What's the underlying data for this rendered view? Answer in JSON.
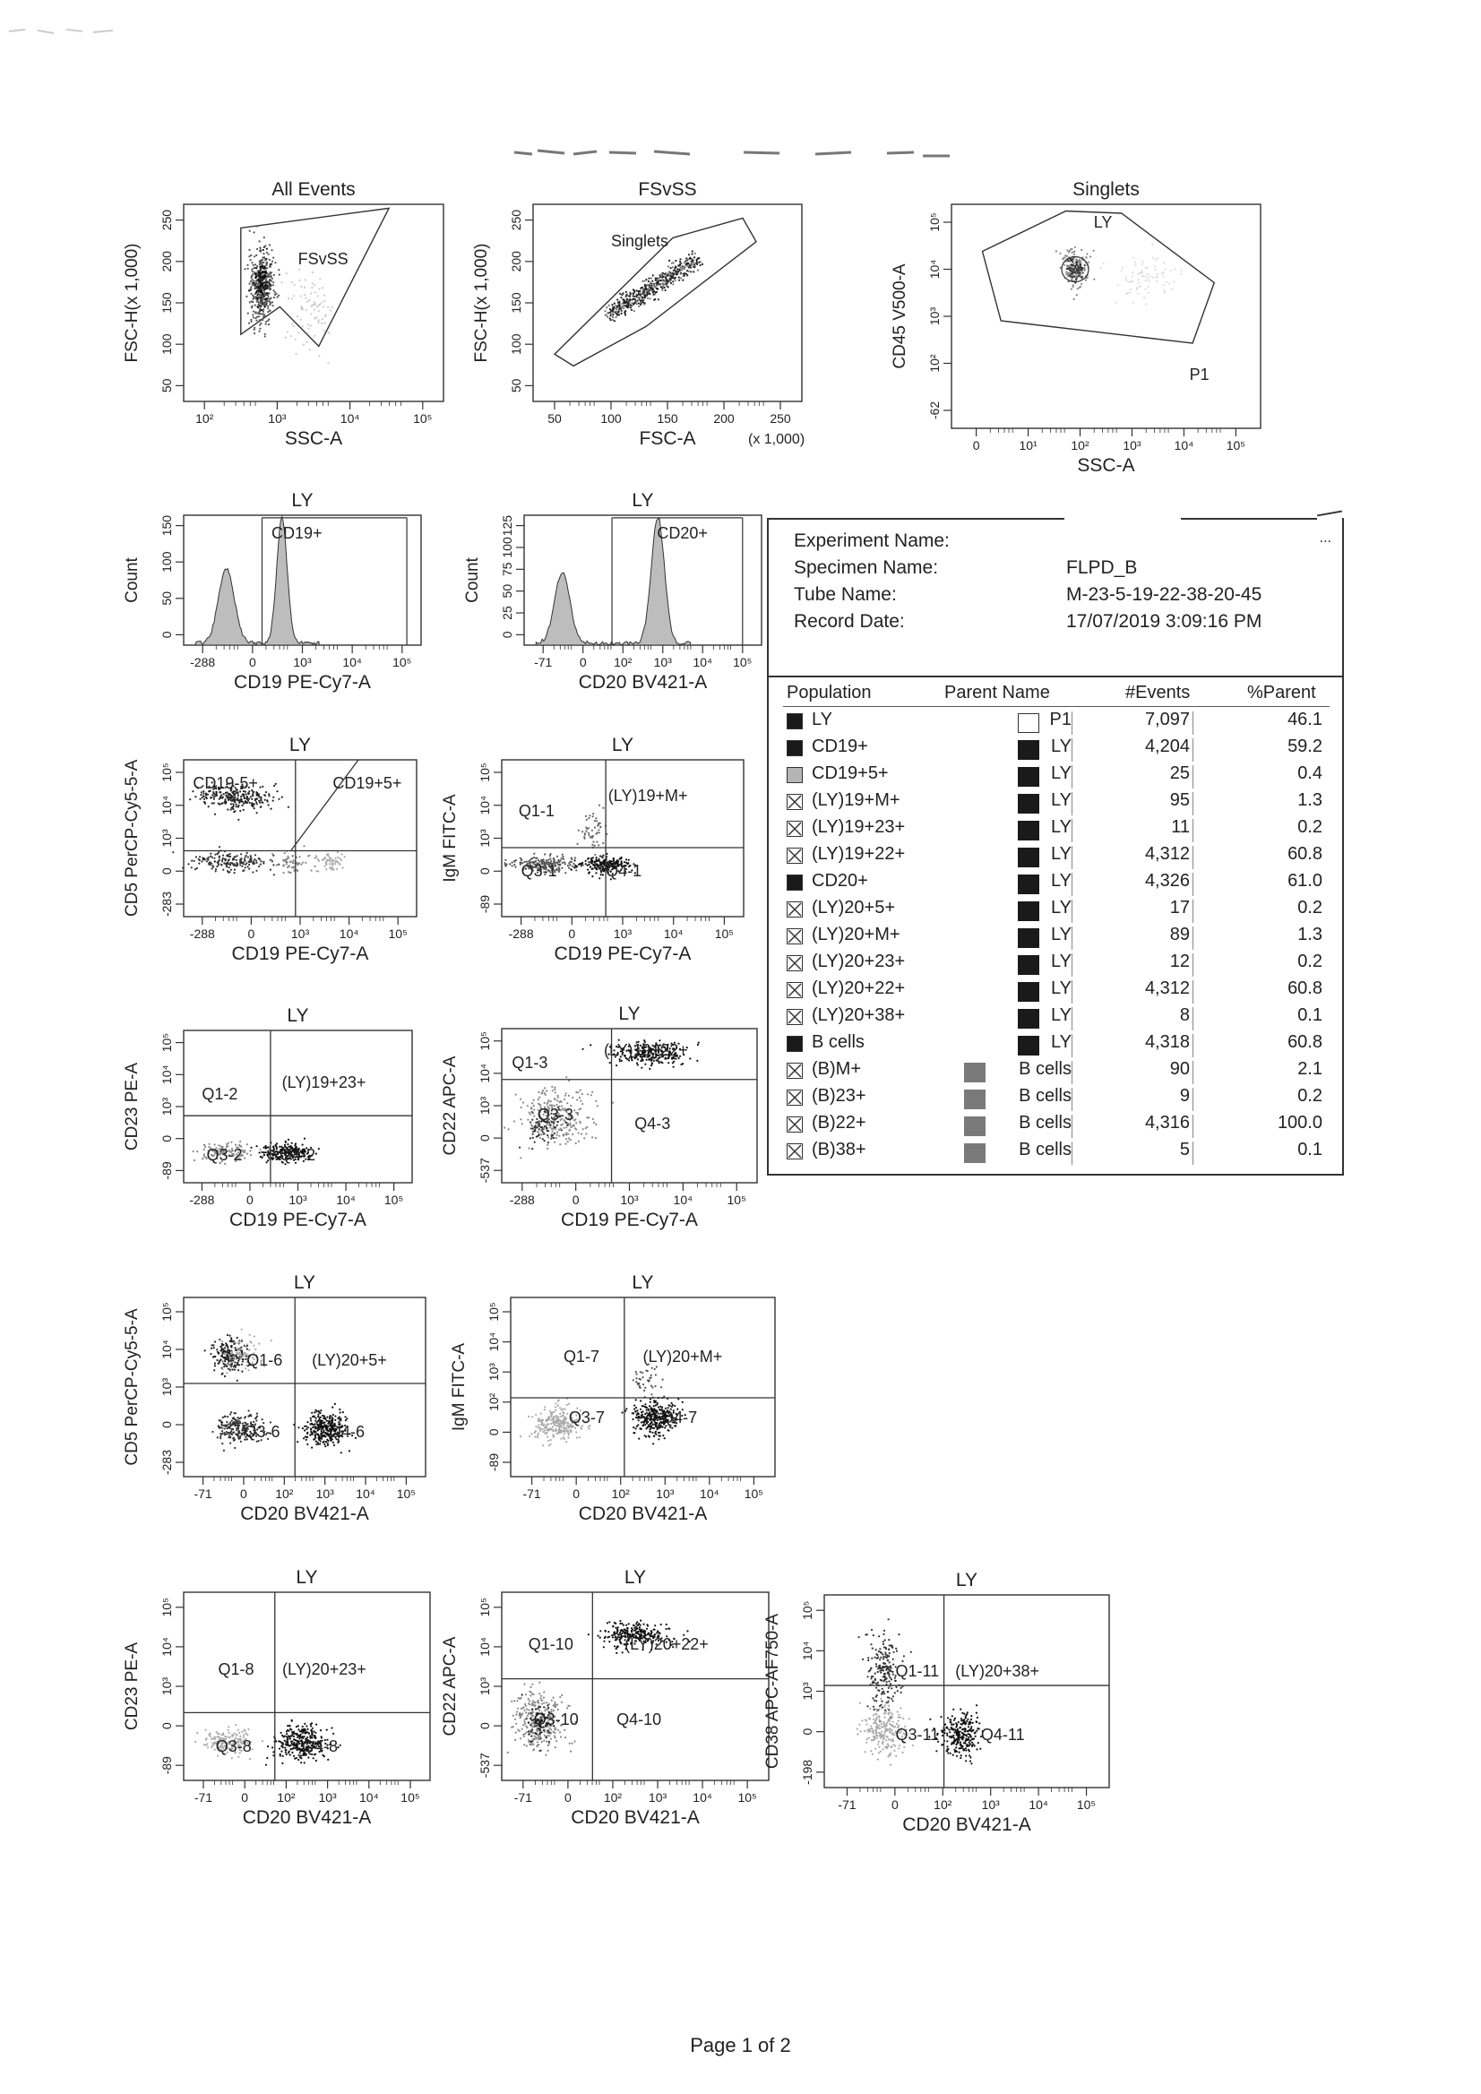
{
  "footer": "Page 1 of 2",
  "info": {
    "labels": [
      "Experiment Name:",
      "Specimen Name:",
      "Tube Name:",
      "Record Date:"
    ],
    "values": [
      "",
      "FLPD_B",
      "M-23-5-19-22-38-20-45",
      "17/07/2019 3:09:16 PM"
    ],
    "ellipsis": "...",
    "columns": [
      "Population",
      "Parent Name",
      "#Events",
      "%Parent"
    ],
    "rows": [
      {
        "pop": "LY",
        "swatch": "dark",
        "parent": "P1",
        "pswatch": "empty",
        "events": "7,097",
        "pct": "46.1"
      },
      {
        "pop": "CD19+",
        "swatch": "dark",
        "parent": "LY",
        "pswatch": "dark",
        "events": "4,204",
        "pct": "59.2"
      },
      {
        "pop": "CD19+5+",
        "swatch": "gray",
        "parent": "LY",
        "pswatch": "dark",
        "events": "25",
        "pct": "0.4"
      },
      {
        "pop": "(LY)19+M+",
        "swatch": "x",
        "parent": "LY",
        "pswatch": "dark",
        "events": "95",
        "pct": "1.3"
      },
      {
        "pop": "(LY)19+23+",
        "swatch": "x",
        "parent": "LY",
        "pswatch": "dark",
        "events": "11",
        "pct": "0.2"
      },
      {
        "pop": "(LY)19+22+",
        "swatch": "x",
        "parent": "LY",
        "pswatch": "dark",
        "events": "4,312",
        "pct": "60.8"
      },
      {
        "pop": "CD20+",
        "swatch": "dark",
        "parent": "LY",
        "pswatch": "dark",
        "events": "4,326",
        "pct": "61.0"
      },
      {
        "pop": "(LY)20+5+",
        "swatch": "x",
        "parent": "LY",
        "pswatch": "dark",
        "events": "17",
        "pct": "0.2"
      },
      {
        "pop": "(LY)20+M+",
        "swatch": "x",
        "parent": "LY",
        "pswatch": "dark",
        "events": "89",
        "pct": "1.3"
      },
      {
        "pop": "(LY)20+23+",
        "swatch": "x",
        "parent": "LY",
        "pswatch": "dark",
        "events": "12",
        "pct": "0.2"
      },
      {
        "pop": "(LY)20+22+",
        "swatch": "x",
        "parent": "LY",
        "pswatch": "dark",
        "events": "4,312",
        "pct": "60.8"
      },
      {
        "pop": "(LY)20+38+",
        "swatch": "x",
        "parent": "LY",
        "pswatch": "dark",
        "events": "8",
        "pct": "0.1"
      },
      {
        "pop": "B cells",
        "swatch": "dark",
        "parent": "LY",
        "pswatch": "dark",
        "events": "4,318",
        "pct": "60.8"
      },
      {
        "pop": "(B)M+",
        "swatch": "x",
        "parent": "B cells",
        "pswatch": "mid",
        "events": "90",
        "pct": "2.1"
      },
      {
        "pop": "(B)23+",
        "swatch": "x",
        "parent": "B cells",
        "pswatch": "mid",
        "events": "9",
        "pct": "0.2"
      },
      {
        "pop": "(B)22+",
        "swatch": "x",
        "parent": "B cells",
        "pswatch": "mid",
        "events": "4,316",
        "pct": "100.0"
      },
      {
        "pop": "(B)38+",
        "swatch": "x",
        "parent": "B cells",
        "pswatch": "mid",
        "events": "5",
        "pct": "0.1"
      }
    ]
  },
  "plots": [
    {
      "id": "p1",
      "title": "All Events",
      "xlabel": "SSC-A",
      "ylabel": "FSC-H(x 1,000)",
      "xticks": [
        "10²",
        "10³",
        "10⁴",
        "10⁵"
      ],
      "yticks": [
        "50",
        "100",
        "150",
        "200",
        "250"
      ],
      "gates": [
        "FSvSS"
      ]
    },
    {
      "id": "p2",
      "title": "FSvSS",
      "xlabel": "FSC-A",
      "xunit": "(x 1,000)",
      "ylabel": "FSC-H(x 1,000)",
      "xticks": [
        "50",
        "100",
        "150",
        "200",
        "250"
      ],
      "yticks": [
        "50",
        "100",
        "150",
        "200",
        "250"
      ],
      "gates": [
        "Singlets"
      ]
    },
    {
      "id": "p3",
      "title": "Singlets",
      "xlabel": "SSC-A",
      "ylabel": "CD45 V500-A",
      "xticks": [
        "0",
        "10¹",
        "10²",
        "10³",
        "10⁴",
        "10⁵"
      ],
      "yticks": [
        "-62",
        "10²",
        "10³",
        "10⁴",
        "10⁵"
      ],
      "gates": [
        "LY",
        "P1"
      ]
    },
    {
      "id": "p4",
      "title": "LY",
      "xlabel": "CD19 PE-Cy7-A",
      "ylabel": "Count",
      "xticks": [
        "-288",
        "0",
        "10³",
        "10⁴",
        "10⁵"
      ],
      "yticks": [
        "0",
        "50",
        "100",
        "150"
      ],
      "gates": [
        "CD19+"
      ]
    },
    {
      "id": "p5",
      "title": "LY",
      "xlabel": "CD20 BV421-A",
      "ylabel": "Count",
      "xticks": [
        "-71",
        "0",
        "10²",
        "10³",
        "10⁴",
        "10⁵"
      ],
      "yticks": [
        "0",
        "25",
        "50",
        "75",
        "100",
        "125"
      ],
      "gates": [
        "CD20+"
      ]
    },
    {
      "id": "p6",
      "title": "LY",
      "xlabel": "CD19 PE-Cy7-A",
      "ylabel": "CD5 PerCP-Cy5-5-A",
      "xticks": [
        "-288",
        "0",
        "10³",
        "10⁴",
        "10⁵"
      ],
      "yticks": [
        "-283",
        "0",
        "10³",
        "10⁴",
        "10⁵"
      ],
      "gates": [
        "CD19-5+",
        "CD19+5+"
      ]
    },
    {
      "id": "p7",
      "title": "LY",
      "xlabel": "CD19 PE-Cy7-A",
      "ylabel": "IgM FITC-A",
      "xticks": [
        "-288",
        "0",
        "10³",
        "10⁴",
        "10⁵"
      ],
      "yticks": [
        "-89",
        "0",
        "10³",
        "10⁴",
        "10⁵"
      ],
      "gates": [
        "Q1-1",
        "(LY)19+M+",
        "Q3-1",
        "Q4-1"
      ]
    },
    {
      "id": "p8",
      "title": "LY",
      "xlabel": "CD19 PE-Cy7-A",
      "ylabel": "CD23 PE-A",
      "xticks": [
        "-288",
        "0",
        "10³",
        "10⁴",
        "10⁵"
      ],
      "yticks": [
        "-89",
        "0",
        "10³",
        "10⁴",
        "10⁵"
      ],
      "gates": [
        "Q1-2",
        "(LY)19+23+",
        "Q3-2",
        "Q4-2"
      ]
    },
    {
      "id": "p9",
      "title": "LY",
      "xlabel": "CD19 PE-Cy7-A",
      "ylabel": "CD22 APC-A",
      "xticks": [
        "-288",
        "0",
        "10³",
        "10⁴",
        "10⁵"
      ],
      "yticks": [
        "-537",
        "0",
        "10³",
        "10⁴",
        "10⁵"
      ],
      "gates": [
        "Q1-3",
        "(LY)19+22+",
        "Q3-3",
        "Q4-3"
      ]
    },
    {
      "id": "p10",
      "title": "LY",
      "xlabel": "CD20 BV421-A",
      "ylabel": "CD5 PerCP-Cy5-5-A",
      "xticks": [
        "-71",
        "0",
        "10²",
        "10³",
        "10⁴",
        "10⁵"
      ],
      "yticks": [
        "-283",
        "0",
        "10³",
        "10⁴",
        "10⁵"
      ],
      "gates": [
        "Q1-6",
        "(LY)20+5+",
        "Q3-6",
        "Q4-6"
      ]
    },
    {
      "id": "p11",
      "title": "LY",
      "xlabel": "CD20 BV421-A",
      "ylabel": "IgM FITC-A",
      "xticks": [
        "-71",
        "0",
        "10²",
        "10³",
        "10⁴",
        "10⁵"
      ],
      "yticks": [
        "-89",
        "0",
        "10²",
        "10³",
        "10⁴",
        "10⁵"
      ],
      "gates": [
        "Q1-7",
        "(LY)20+M+",
        "Q3-7",
        "Q4-7"
      ]
    },
    {
      "id": "p12",
      "title": "LY",
      "xlabel": "CD20 BV421-A",
      "ylabel": "CD23 PE-A",
      "xticks": [
        "-71",
        "0",
        "10²",
        "10³",
        "10⁴",
        "10⁵"
      ],
      "yticks": [
        "-89",
        "0",
        "10³",
        "10⁴",
        "10⁵"
      ],
      "gates": [
        "Q1-8",
        "(LY)20+23+",
        "Q3-8",
        "Q4-8"
      ]
    },
    {
      "id": "p13",
      "title": "LY",
      "xlabel": "CD20 BV421-A",
      "ylabel": "CD22 APC-A",
      "xticks": [
        "-71",
        "0",
        "10²",
        "10³",
        "10⁴",
        "10⁵"
      ],
      "yticks": [
        "-537",
        "0",
        "10³",
        "10⁴",
        "10⁵"
      ],
      "gates": [
        "Q1-10",
        "(LY)20+22+",
        "Q3-10",
        "Q4-10"
      ]
    },
    {
      "id": "p14",
      "title": "LY",
      "xlabel": "CD20 BV421-A",
      "ylabel": "CD38 APC-AF750-A",
      "xticks": [
        "-71",
        "0",
        "10²",
        "10³",
        "10⁴",
        "10⁵"
      ],
      "yticks": [
        "-198",
        "0",
        "10³",
        "10⁴",
        "10⁵"
      ],
      "gates": [
        "Q1-11",
        "(LY)20+38+",
        "Q3-11",
        "Q4-11"
      ]
    }
  ]
}
